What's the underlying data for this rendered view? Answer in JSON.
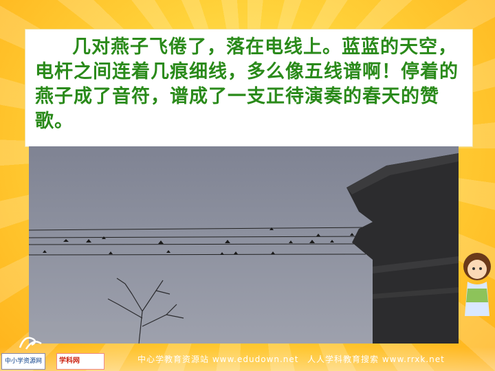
{
  "slide": {
    "passage": "几对燕子飞倦了，落在电线上。蓝蓝的天空，电杆之间连着几痕细线，多么像五线谱啊！停着的燕子成了音符，谱成了一支正待演奏的春天的赞歌。"
  },
  "footer": {
    "logo_left": "中小学资源网",
    "logo_mid": "学科网",
    "watermark_left": "中心学教育资源站 www.edudown.net",
    "watermark_right": "人人学科教育搜索 www.rrxk.net"
  },
  "icons": [
    "swallow-icon",
    "tree-icon",
    "girl-illustration",
    "swirl-logo"
  ]
}
